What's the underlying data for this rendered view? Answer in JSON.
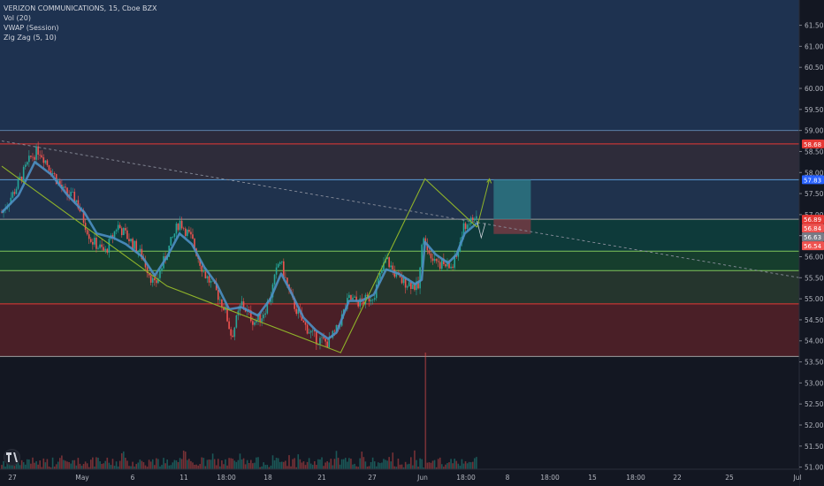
{
  "chart": {
    "instrument": "VERIZON COMMUNICATIONS, 15, Cboe BZX",
    "indicators": [
      "Vol (20)",
      "VWAP (Session)",
      "Zig Zag (5, 10)"
    ]
  },
  "colors": {
    "background": "#131722",
    "candle_up": "#26a69a",
    "candle_down": "#ef5350",
    "vwap": "#4c8fc4",
    "zigzag": "#8fb32a",
    "resistance_red": "#e53935",
    "support_green": "#7fc45b"
  },
  "chart_data": {
    "type": "candlestick",
    "x_tick_labels": [
      "27",
      "May",
      "6",
      "11",
      "18:00",
      "18",
      "21",
      "27",
      "Jun",
      "18:00",
      "8",
      "18:00",
      "15",
      "18:00",
      "22",
      "25",
      "Jul"
    ],
    "y_tick_labels": [
      "51.00",
      "51.50",
      "52.00",
      "52.50",
      "53.00",
      "53.50",
      "54.00",
      "54.50",
      "55.00",
      "55.50",
      "56.00",
      "56.50",
      "57.00",
      "57.50",
      "58.00",
      "58.50",
      "59.00",
      "59.50",
      "60.00",
      "60.50",
      "61.00",
      "61.50"
    ],
    "ylim": [
      50.95,
      62.1
    ],
    "price_tags": [
      {
        "value": 58.68,
        "label": "58.68",
        "color": "#e53935"
      },
      {
        "value": 57.83,
        "label": "57.83",
        "color": "#2962ff"
      },
      {
        "value": 56.89,
        "label": "56.89",
        "color": "#e53935"
      },
      {
        "value": 56.84,
        "label": "56.84",
        "color": "#ef5350"
      },
      {
        "value": 56.63,
        "label": "56.63",
        "color": "#787b86"
      },
      {
        "value": 56.54,
        "label": "56.54",
        "color": "#ef5350"
      }
    ],
    "price_path": [
      [
        0,
        57.05
      ],
      [
        1.5,
        57.55
      ],
      [
        3.5,
        58.35
      ],
      [
        4.5,
        58.55
      ],
      [
        6,
        58.05
      ],
      [
        7.5,
        57.55
      ],
      [
        9,
        57.35
      ],
      [
        10.8,
        56.4
      ],
      [
        12.5,
        56.1
      ],
      [
        14,
        56.75
      ],
      [
        15.5,
        56.4
      ],
      [
        17,
        56.0
      ],
      [
        18.5,
        55.3
      ],
      [
        20,
        56.1
      ],
      [
        21.5,
        56.85
      ],
      [
        23,
        56.4
      ],
      [
        24.5,
        55.6
      ],
      [
        26,
        55.15
      ],
      [
        27,
        54.75
      ],
      [
        27.8,
        54.1
      ],
      [
        29,
        54.9
      ],
      [
        30.5,
        54.45
      ],
      [
        31.5,
        54.6
      ],
      [
        32.5,
        55.05
      ],
      [
        33.6,
        55.95
      ],
      [
        35,
        55.0
      ],
      [
        36.5,
        54.4
      ],
      [
        38,
        54.05
      ],
      [
        39.5,
        53.95
      ],
      [
        40.5,
        54.25
      ],
      [
        42,
        55.0
      ],
      [
        43.5,
        54.9
      ],
      [
        45,
        55.1
      ],
      [
        46.5,
        55.95
      ],
      [
        48,
        55.45
      ],
      [
        49.5,
        55.35
      ],
      [
        50.4,
        55.25
      ],
      [
        51.0,
        56.6
      ],
      [
        51.6,
        56.15
      ],
      [
        53,
        55.85
      ],
      [
        54.5,
        55.75
      ],
      [
        55,
        56.0
      ],
      [
        56,
        56.75
      ],
      [
        57.5,
        56.95
      ]
    ],
    "vwap_path": [
      [
        0,
        57.05
      ],
      [
        2,
        57.45
      ],
      [
        4,
        58.25
      ],
      [
        6,
        57.95
      ],
      [
        8,
        57.45
      ],
      [
        10,
        57.05
      ],
      [
        11.5,
        56.55
      ],
      [
        13.5,
        56.45
      ],
      [
        15,
        56.3
      ],
      [
        17,
        56.0
      ],
      [
        18.5,
        55.55
      ],
      [
        20,
        56.0
      ],
      [
        21.5,
        56.55
      ],
      [
        23,
        56.3
      ],
      [
        24.5,
        55.75
      ],
      [
        26,
        55.35
      ],
      [
        27.5,
        54.75
      ],
      [
        29,
        54.8
      ],
      [
        31,
        54.6
      ],
      [
        32.5,
        55.0
      ],
      [
        33.8,
        55.6
      ],
      [
        35,
        55.15
      ],
      [
        36.5,
        54.55
      ],
      [
        38,
        54.25
      ],
      [
        39.5,
        54.05
      ],
      [
        40.5,
        54.2
      ],
      [
        42,
        54.95
      ],
      [
        43.5,
        54.95
      ],
      [
        45,
        55.1
      ],
      [
        46.5,
        55.7
      ],
      [
        48,
        55.6
      ],
      [
        50,
        55.35
      ],
      [
        50.8,
        55.45
      ],
      [
        51.2,
        56.35
      ],
      [
        52.5,
        56.05
      ],
      [
        54,
        55.85
      ],
      [
        55,
        56.05
      ],
      [
        56,
        56.55
      ],
      [
        57.5,
        56.8
      ]
    ],
    "zigzag": [
      [
        0,
        58.15
      ],
      [
        20,
        55.3
      ],
      [
        41,
        53.72
      ],
      [
        51.2,
        57.85
      ],
      [
        57.5,
        56.7
      ]
    ],
    "projection": [
      [
        57.5,
        56.7
      ],
      [
        59,
        57.85
      ]
    ],
    "projection_curve": [
      [
        57.5,
        56.85
      ],
      [
        58,
        56.45
      ],
      [
        58.5,
        56.8
      ]
    ],
    "trendline": [
      [
        0,
        58.75
      ],
      [
        98,
        55.45
      ]
    ],
    "horizontal_levels": [
      {
        "value": 58.68,
        "color": "#e53935"
      },
      {
        "value": 57.83,
        "color": "#5b9bd5"
      },
      {
        "value": 56.89,
        "color": "#9e9e9e"
      },
      {
        "value": 56.13,
        "color": "#7fc45b"
      },
      {
        "value": 55.67,
        "color": "#7fc45b"
      },
      {
        "value": 54.88,
        "color": "#e53935"
      },
      {
        "value": 53.63,
        "color": "#9e9e9e"
      },
      {
        "value": 59.0,
        "color": "#5b7fa6"
      }
    ],
    "zones": [
      {
        "from": 59.0,
        "to": 62.1,
        "color": "#1e3250"
      },
      {
        "from": 58.68,
        "to": 59.0,
        "color": "#2b2a3b"
      },
      {
        "from": 57.83,
        "to": 58.68,
        "color": "#2e2c3a"
      },
      {
        "from": 56.89,
        "to": 57.83,
        "color": "#1f324d"
      },
      {
        "from": 56.13,
        "to": 56.89,
        "color": "#0e3a3a"
      },
      {
        "from": 55.67,
        "to": 56.13,
        "color": "#163e2d"
      },
      {
        "from": 54.88,
        "to": 55.67,
        "color": "#25352d"
      },
      {
        "from": 53.63,
        "to": 54.88,
        "color": "#4a1f27"
      }
    ],
    "position_box": {
      "x_start": 59.5,
      "x_end": 64.0,
      "target": 57.83,
      "entry": 56.89,
      "stop": 56.54
    },
    "volume_spike_index": 51.2
  }
}
